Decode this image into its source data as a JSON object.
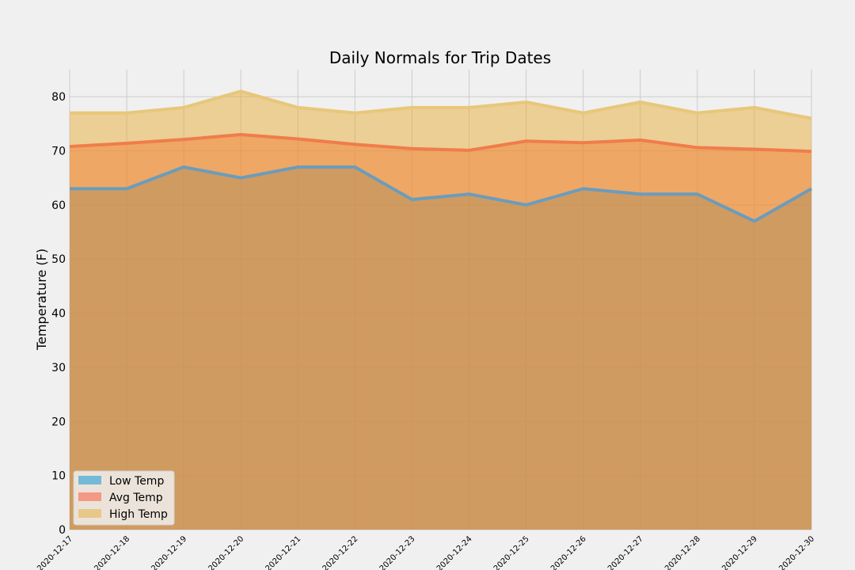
{
  "chart_data": {
    "type": "area",
    "title": "Daily Normals for Trip Dates",
    "xlabel": "",
    "ylabel": "Temperature (F)",
    "ylim": [
      0,
      85
    ],
    "yticks": [
      0,
      10,
      20,
      30,
      40,
      50,
      60,
      70,
      80
    ],
    "grid": true,
    "stacked": false,
    "legend_position": "lower-left",
    "x": [
      "2020-12-17",
      "2020-12-18",
      "2020-12-19",
      "2020-12-20",
      "2020-12-21",
      "2020-12-22",
      "2020-12-23",
      "2020-12-24",
      "2020-12-25",
      "2020-12-26",
      "2020-12-27",
      "2020-12-28",
      "2020-12-29",
      "2020-12-30"
    ],
    "series": [
      {
        "name": "Low Temp",
        "color": "#6b9cbc",
        "fill": "#008fd5",
        "values": [
          63,
          63,
          67,
          65,
          67,
          67,
          61,
          62,
          60,
          63,
          62,
          62,
          57,
          63
        ]
      },
      {
        "name": "Avg Temp",
        "color": "#f07c4c",
        "fill": "#fc4f30",
        "values": [
          70.8,
          71.4,
          72.1,
          73.0,
          72.2,
          71.2,
          70.4,
          70.1,
          71.8,
          71.5,
          72.0,
          70.6,
          70.3,
          69.9
        ]
      },
      {
        "name": "High Temp",
        "color": "#e8c77a",
        "fill": "#e5ae38",
        "values": [
          77,
          77,
          78,
          81,
          78,
          77,
          78,
          78,
          79,
          77,
          79,
          77,
          78,
          76
        ]
      }
    ]
  }
}
